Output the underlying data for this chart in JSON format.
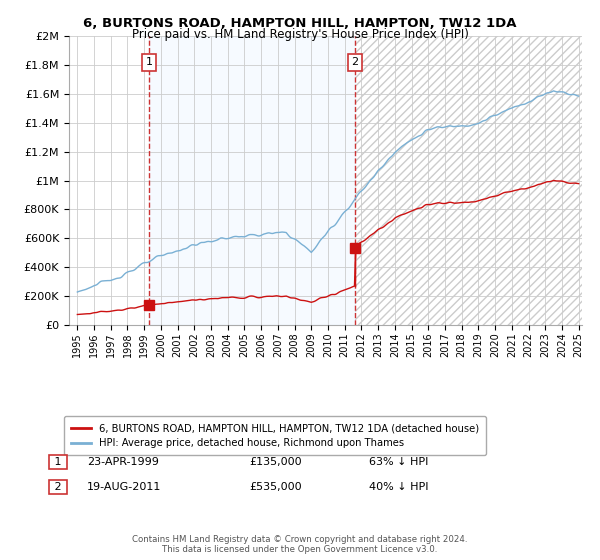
{
  "title": "6, BURTONS ROAD, HAMPTON HILL, HAMPTON, TW12 1DA",
  "subtitle": "Price paid vs. HM Land Registry's House Price Index (HPI)",
  "background_color": "#ffffff",
  "plot_bg_color": "#ffffff",
  "grid_color": "#cccccc",
  "sale1_date": "23-APR-1999",
  "sale1_price": 135000,
  "sale2_date": "19-AUG-2011",
  "sale2_price": 535000,
  "legend_line1": "6, BURTONS ROAD, HAMPTON HILL, HAMPTON, TW12 1DA (detached house)",
  "legend_line2": "HPI: Average price, detached house, Richmond upon Thames",
  "footer": "Contains HM Land Registry data © Crown copyright and database right 2024.\nThis data is licensed under the Open Government Licence v3.0.",
  "ylim": [
    0,
    2000000
  ],
  "yticks": [
    0,
    200000,
    400000,
    600000,
    800000,
    1000000,
    1200000,
    1400000,
    1600000,
    1800000,
    2000000
  ],
  "red_color": "#cc1111",
  "blue_color": "#7ab0d4",
  "dashed_red": "#cc3333",
  "sale1_x": 1999.3,
  "sale2_x": 2011.6,
  "xlim_left": 1994.5,
  "xlim_right": 2025.2,
  "shade_color": "#ddeeff",
  "row1_date": "23-APR-1999",
  "row1_price": "£135,000",
  "row1_pct": "63% ↓ HPI",
  "row2_date": "19-AUG-2011",
  "row2_price": "£535,000",
  "row2_pct": "40% ↓ HPI"
}
